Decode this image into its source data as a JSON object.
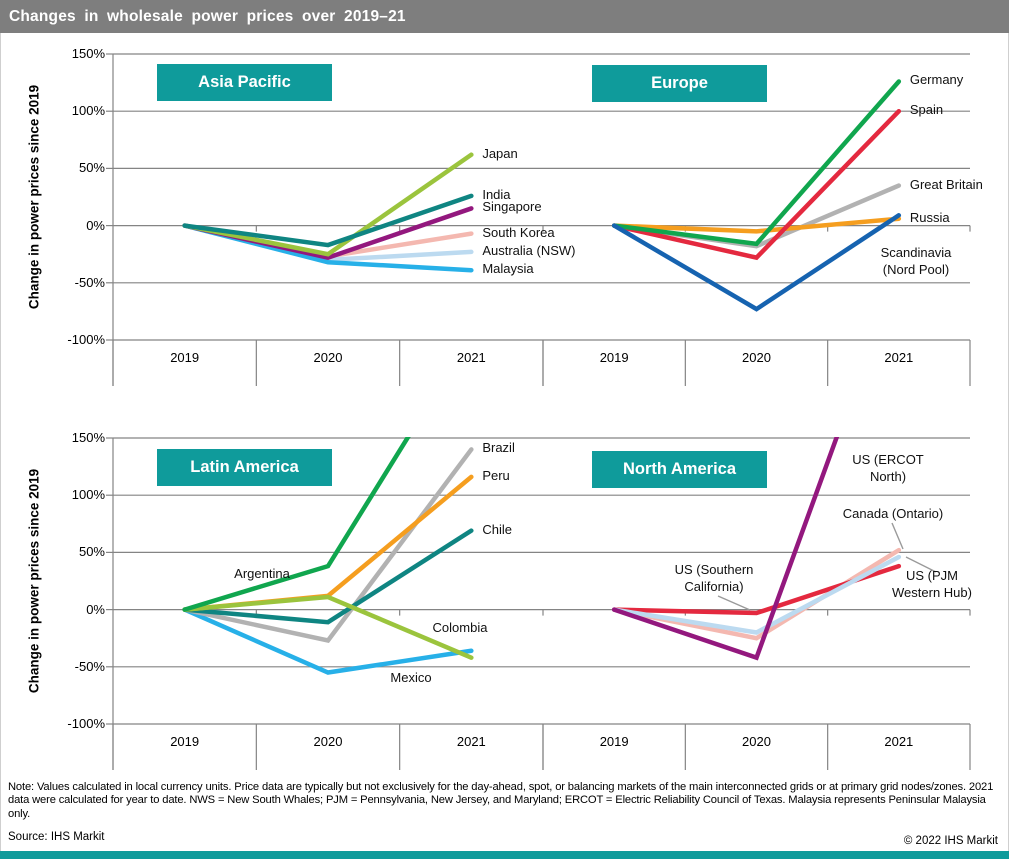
{
  "title": "Changes in wholesale power prices over 2019–21",
  "y_axis_label": "Change in power prices since 2019",
  "y_ticks": [
    150,
    100,
    50,
    0,
    -50,
    -100
  ],
  "x_categories": [
    "2019",
    "2020",
    "2021"
  ],
  "footer": {
    "note": "Note: Values calculated in local currency units. Price data are typically but not exclusively for the day-ahead, spot, or balancing markets of the main interconnected grids or at primary grid nodes/zones. 2021 data were calculated for year to date. NWS = New South Whales; PJM = Pennsylvania, New Jersey, and Maryland; ERCOT = Electric Reliability Council of Texas. Malaysia represents Peninsular Malaysia only.",
    "source": "Source: IHS Markit",
    "copyright": "© 2022 IHS Markit"
  },
  "theme": {
    "teal_accent": "#0f9b9b",
    "titlebar_gray": "#7e7e7e",
    "grid_gray": "#848484",
    "leader_gray": "#9a9a9a"
  },
  "chart_data": [
    {
      "type": "line",
      "region": "Asia Pacific",
      "x": [
        "2019",
        "2020",
        "2021"
      ],
      "ylim": [
        -100,
        150
      ],
      "ylabel": "Change in power prices since 2019",
      "grid": true,
      "series": [
        {
          "name": "South Korea",
          "color": "#f4b8b0",
          "values": [
            0,
            -27,
            -7
          ]
        },
        {
          "name": "Australia (NSW)",
          "color": "#bcdaf0",
          "values": [
            0,
            -30,
            -23
          ]
        },
        {
          "name": "Malaysia",
          "color": "#27b0e8",
          "values": [
            0,
            -32,
            -39
          ]
        },
        {
          "name": "Singapore",
          "color": "#93187e",
          "values": [
            0,
            -28,
            15
          ]
        },
        {
          "name": "Japan",
          "color": "#9bc43d",
          "values": [
            0,
            -25,
            62
          ]
        },
        {
          "name": "India",
          "color": "#0f8582",
          "values": [
            0,
            -17,
            26
          ]
        }
      ]
    },
    {
      "type": "line",
      "region": "Europe",
      "x": [
        "2019",
        "2020",
        "2021"
      ],
      "ylim": [
        -100,
        150
      ],
      "ylabel": "Change in power prices since 2019",
      "grid": true,
      "series": [
        {
          "name": "Great Britain",
          "color": "#b2b2b2",
          "values": [
            0,
            -18,
            35
          ]
        },
        {
          "name": "Russia",
          "color": "#f59e1f",
          "values": [
            0,
            -5,
            6
          ]
        },
        {
          "name": "Spain",
          "color": "#e4293f",
          "values": [
            0,
            -28,
            100
          ]
        },
        {
          "name": "Germany",
          "color": "#10a64e",
          "values": [
            0,
            -16,
            126
          ]
        },
        {
          "name": "Scandinavia (Nord Pool)",
          "color": "#1663b0",
          "values": [
            0,
            -73,
            9
          ],
          "label_lines": [
            "Scandinavia",
            "(Nord Pool)"
          ]
        }
      ]
    },
    {
      "type": "line",
      "region": "Latin America",
      "x": [
        "2019",
        "2020",
        "2021"
      ],
      "ylim": [
        -100,
        150
      ],
      "ylabel": "Change in power prices since 2019",
      "grid": true,
      "series": [
        {
          "name": "Mexico",
          "color": "#27b0e8",
          "values": [
            0,
            -55,
            -36
          ]
        },
        {
          "name": "Brazil",
          "color": "#b2b2b2",
          "values": [
            0,
            -27,
            140
          ]
        },
        {
          "name": "Chile",
          "color": "#0f8582",
          "values": [
            0,
            -11,
            69
          ]
        },
        {
          "name": "Peru",
          "color": "#f59e1f",
          "values": [
            0,
            12,
            116
          ]
        },
        {
          "name": "Colombia",
          "color": "#9bc43d",
          "values": [
            0,
            11,
            -42
          ]
        },
        {
          "name": "Argentina",
          "color": "#10a64e",
          "values": [
            0,
            38,
            240
          ],
          "clipped": true
        }
      ]
    },
    {
      "type": "line",
      "region": "North America",
      "x": [
        "2019",
        "2020",
        "2021"
      ],
      "ylim": [
        -100,
        150
      ],
      "ylabel": "Change in power prices since 2019",
      "grid": true,
      "series": [
        {
          "name": "Canada (Ontario)",
          "color": "#f4b8b0",
          "values": [
            0,
            -25,
            52
          ]
        },
        {
          "name": "US (Southern California)",
          "color": "#e4293f",
          "values": [
            0,
            -3,
            38
          ],
          "label_lines": [
            "US (Southern",
            "California)"
          ]
        },
        {
          "name": "US (PJM Western Hub)",
          "color": "#bcdaf0",
          "values": [
            0,
            -20,
            46
          ],
          "label_lines": [
            "US (PJM",
            "Western Hub)"
          ]
        },
        {
          "name": "US (ERCOT North)",
          "color": "#93187e",
          "values": [
            0,
            -42,
            300
          ],
          "clipped": true,
          "label_lines": [
            "US (ERCOT",
            "North)"
          ]
        }
      ]
    }
  ]
}
